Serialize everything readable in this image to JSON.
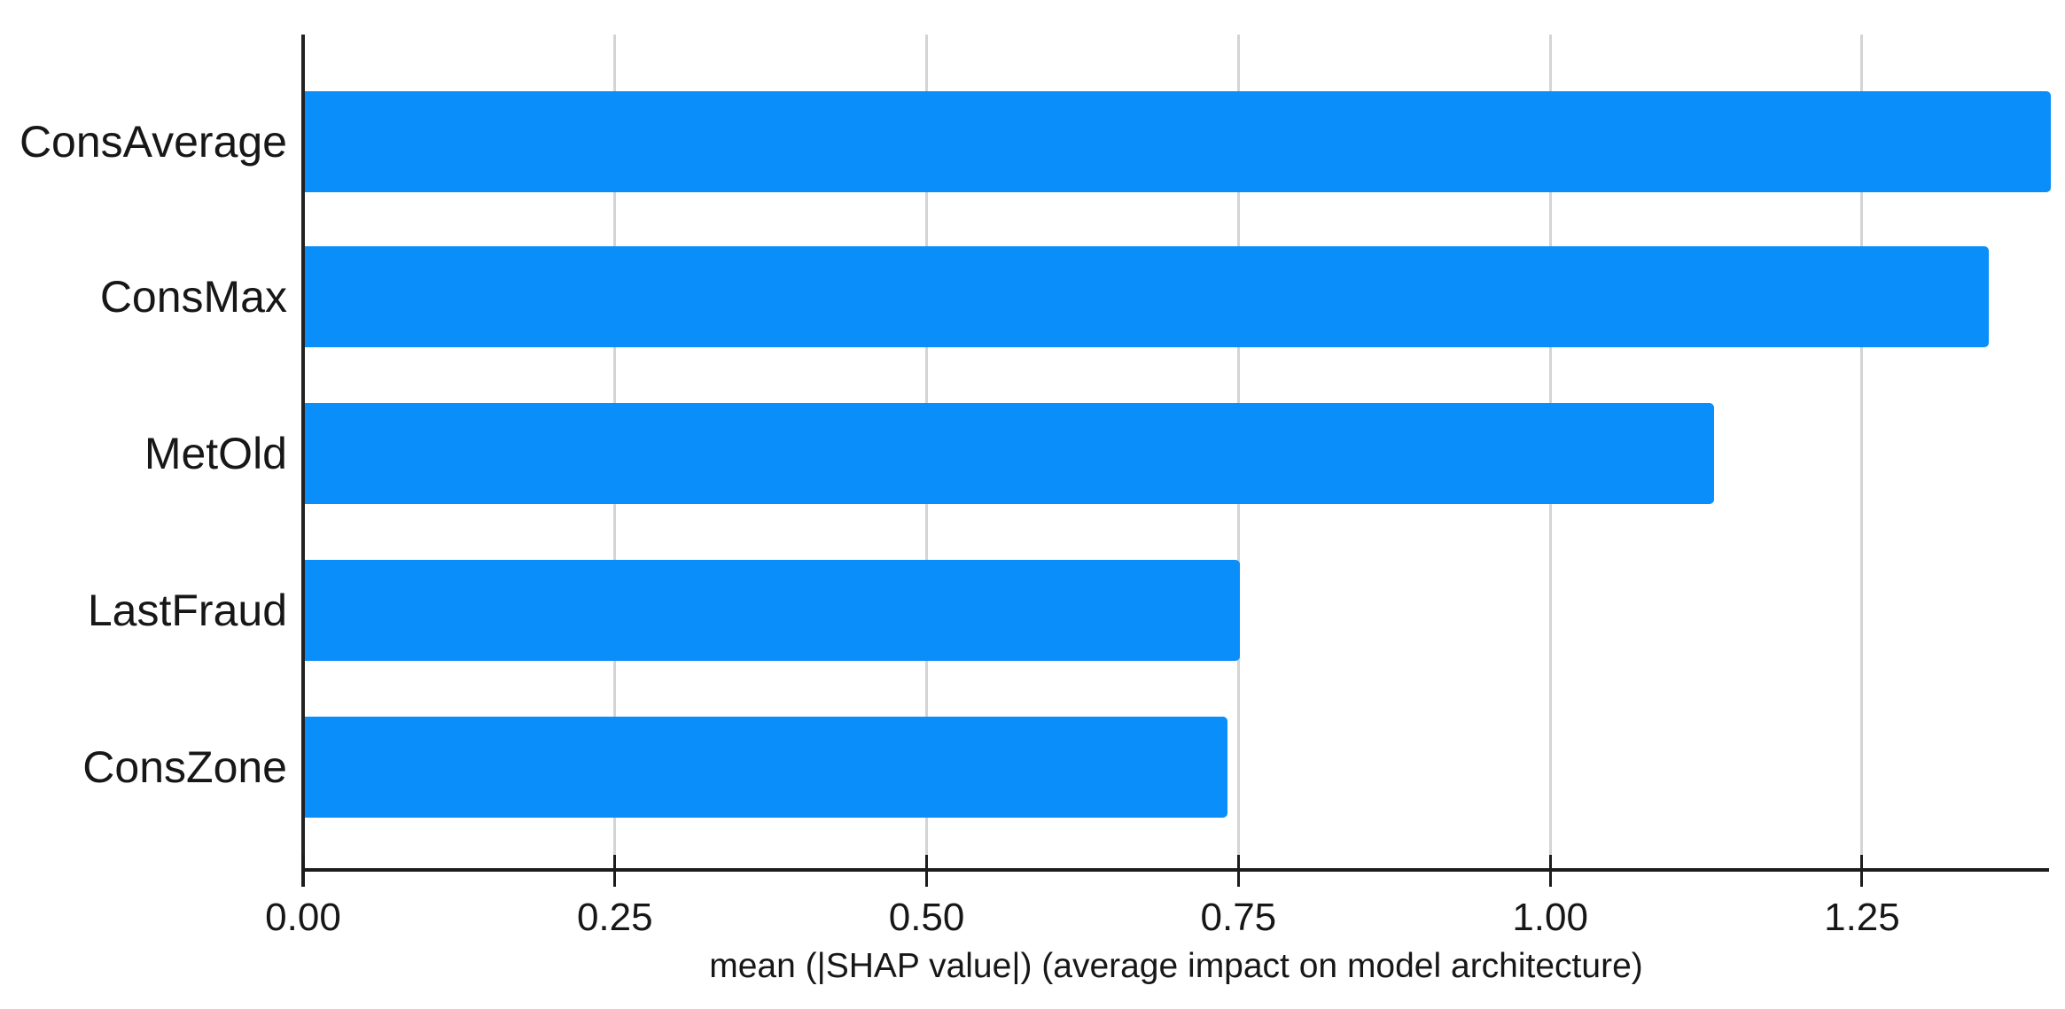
{
  "chart_data": {
    "type": "bar",
    "orientation": "horizontal",
    "title": "",
    "categories": [
      "ConsAverage",
      "ConsMax",
      "MetOld",
      "LastFraud",
      "ConsZone"
    ],
    "values": [
      1.4,
      1.35,
      1.13,
      0.75,
      0.74
    ],
    "series": [
      {
        "name": "mean |SHAP value|",
        "values": [
          1.4,
          1.35,
          1.13,
          0.75,
          0.74
        ]
      }
    ],
    "xlabel": "mean (|SHAP value|) (average impact on model architecture)",
    "ylabel": "",
    "xlim": [
      0,
      1.4
    ],
    "x_ticks": [
      {
        "value": 0.0,
        "label": "0.00"
      },
      {
        "value": 0.25,
        "label": "0.25"
      },
      {
        "value": 0.5,
        "label": "0.50"
      },
      {
        "value": 0.75,
        "label": "0.75"
      },
      {
        "value": 1.0,
        "label": "1.00"
      },
      {
        "value": 1.25,
        "label": "1.25"
      }
    ],
    "grid": "vertical-only",
    "legend_position": "none",
    "bar_color": "#0a8ef9"
  },
  "colors": {
    "background": "#ffffff",
    "bar": "#0a8ef9",
    "gridline": "#d4d4d4",
    "axis_line": "#222222",
    "text": "#171717"
  }
}
